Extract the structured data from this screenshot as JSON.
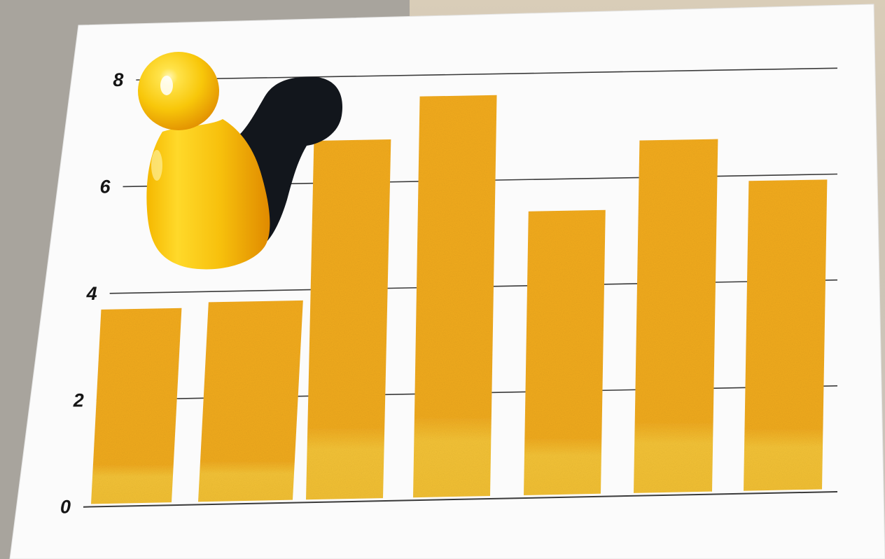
{
  "chart_data": {
    "type": "bar",
    "title": "",
    "xlabel": "",
    "ylabel": "",
    "categories": [
      "",
      "",
      "",
      "",
      "",
      "",
      ""
    ],
    "values": [
      3.7,
      3.8,
      6.8,
      7.6,
      5.4,
      6.7,
      5.9
    ],
    "ylim": [
      0,
      8.6
    ],
    "y_ticks": [
      "0",
      "2",
      "4",
      "6",
      "8"
    ],
    "grid": true,
    "bar_color": "#f2ae1c",
    "gridline_color": "#3a3a3a"
  },
  "decoration": {
    "figure_icon": "yellow-game-pawn",
    "pawn_color": "#f8c70a"
  }
}
